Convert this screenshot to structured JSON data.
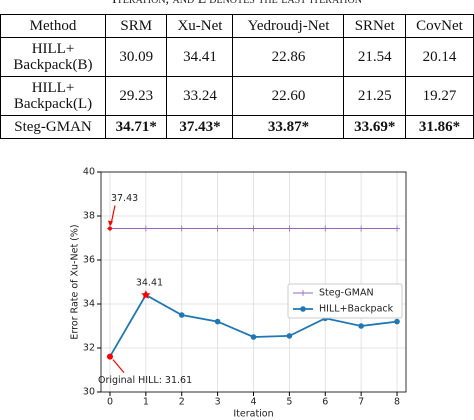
{
  "caption": "Iteration, and L denotes the last iteration",
  "table": {
    "header": [
      "Method",
      "SRM",
      "Xu-Net",
      "Yedroudj-Net",
      "SRNet",
      "CovNet"
    ],
    "rows": [
      [
        "HILL+ Backpack(B)",
        "30.09",
        "34.41",
        "22.86",
        "21.54",
        "20.14"
      ],
      [
        "HILL+ Backpack(L)",
        "29.23",
        "33.24",
        "22.60",
        "21.25",
        "19.27"
      ],
      [
        "Steg-GMAN",
        "34.71*",
        "37.43*",
        "33.87*",
        "33.69*",
        "31.86*"
      ]
    ]
  },
  "chart_data": {
    "type": "line",
    "x_label": "Iteration",
    "y_label": "Error Rate of Xu-Net (%)",
    "x": [
      0,
      1,
      2,
      3,
      4,
      5,
      6,
      7,
      8
    ],
    "series": [
      {
        "name": "Steg-GMAN",
        "color": "#9467bd",
        "values": [
          37.43,
          37.43,
          37.43,
          37.43,
          37.43,
          37.43,
          37.43,
          37.43,
          37.43
        ]
      },
      {
        "name": "HILL+Backpack",
        "color": "#1f77b4",
        "values": [
          31.61,
          34.41,
          33.5,
          33.2,
          32.5,
          32.55,
          33.35,
          33.0,
          33.2
        ]
      }
    ],
    "annotations": [
      "37.43",
      "34.41",
      "Original HILL: 31.61"
    ],
    "xlim": [
      -0.25,
      8.25
    ],
    "ylim": [
      30,
      40
    ],
    "xticks": [
      0,
      1,
      2,
      3,
      4,
      5,
      6,
      7,
      8
    ],
    "yticks": [
      30,
      32,
      34,
      36,
      38,
      40
    ],
    "grid": true,
    "legend": "center right"
  }
}
